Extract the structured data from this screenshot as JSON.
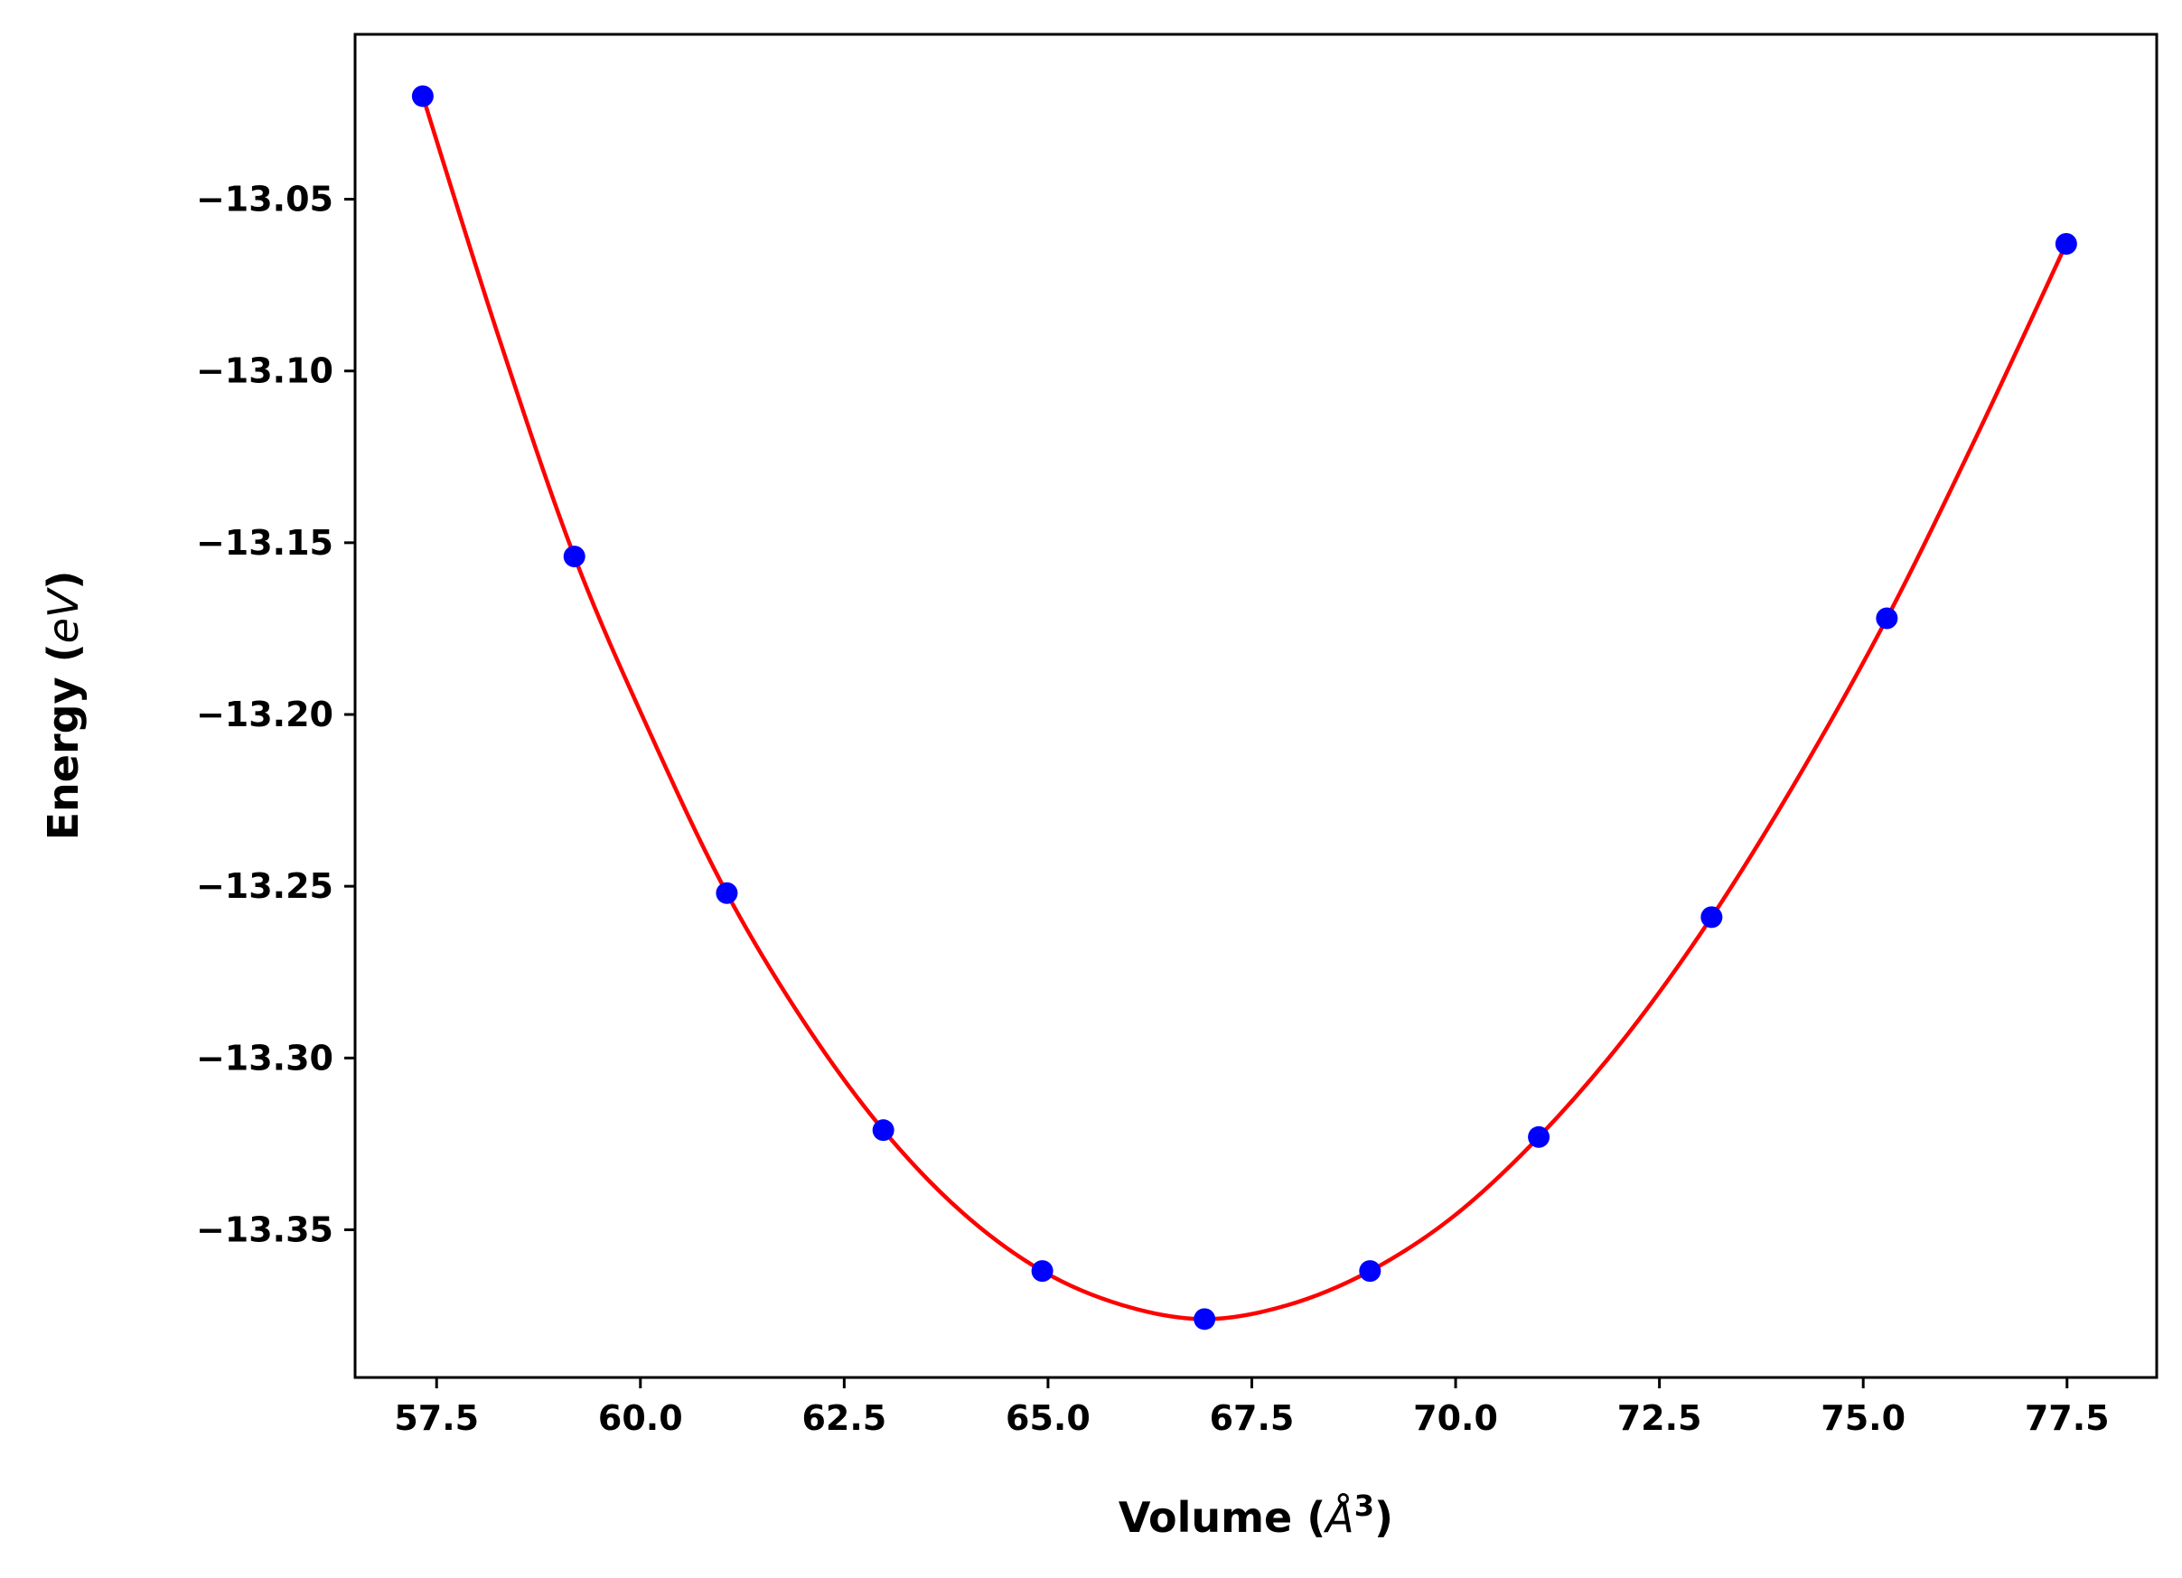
{
  "chart_data": {
    "type": "scatter",
    "xlabel": {
      "prefix": "Volume (",
      "unit": "Å",
      "exponent": "3",
      "suffix": ")"
    },
    "ylabel": {
      "prefix": "Energy (",
      "unit": "eV",
      "suffix": ")"
    },
    "xlim": [
      56.5,
      78.6
    ],
    "ylim": [
      -13.393,
      -13.002
    ],
    "x_ticks": [
      57.5,
      60.0,
      62.5,
      65.0,
      67.5,
      70.0,
      72.5,
      75.0,
      77.5
    ],
    "x_tick_labels": [
      "57.5",
      "60.0",
      "62.5",
      "65.0",
      "67.5",
      "70.0",
      "72.5",
      "75.0",
      "77.5"
    ],
    "y_ticks": [
      -13.05,
      -13.1,
      -13.15,
      -13.2,
      -13.25,
      -13.3,
      -13.35
    ],
    "y_tick_labels": [
      "−13.05",
      "−13.10",
      "−13.15",
      "−13.20",
      "−13.25",
      "−13.30",
      "−13.35"
    ],
    "grid": false,
    "series": [
      {
        "kind": "points",
        "color": "#0000ff",
        "x": [
          57.33,
          59.19,
          61.06,
          62.98,
          64.93,
          66.92,
          68.95,
          71.02,
          73.14,
          75.29,
          77.49
        ],
        "y": [
          -13.02,
          -13.154,
          -13.252,
          -13.321,
          -13.362,
          -13.376,
          -13.362,
          -13.323,
          -13.259,
          -13.172,
          -13.063
        ]
      },
      {
        "kind": "fit-curve",
        "color": "#ff0000",
        "x": [
          57.33,
          58.26,
          59.19,
          60.13,
          61.06,
          62.02,
          62.98,
          63.95,
          64.93,
          65.92,
          66.92,
          67.93,
          68.95,
          69.98,
          71.02,
          72.08,
          73.14,
          74.21,
          75.29,
          76.39,
          77.49
        ],
        "y": [
          -13.02,
          -13.09,
          -13.154,
          -13.206,
          -13.252,
          -13.29,
          -13.321,
          -13.345,
          -13.362,
          -13.372,
          -13.376,
          -13.372,
          -13.362,
          -13.346,
          -13.323,
          -13.294,
          -13.259,
          -13.218,
          -13.172,
          -13.119,
          -13.063
        ]
      }
    ]
  }
}
